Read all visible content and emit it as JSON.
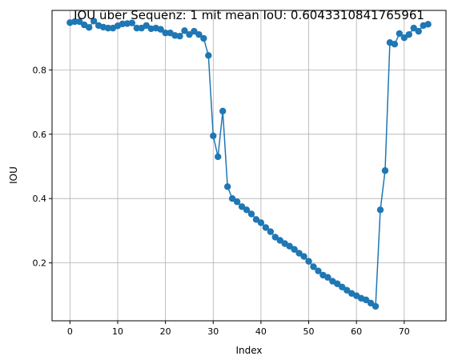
{
  "chart_data": {
    "type": "line",
    "title": "IOU über Sequenz: 1 mit mean IoU: 0.6043310841765961",
    "xlabel": "Index",
    "ylabel": "IOU",
    "xlim": [
      -3.75,
      78.75
    ],
    "ylim": [
      0.02,
      0.985
    ],
    "xticks": [
      0,
      10,
      20,
      30,
      40,
      50,
      60,
      70
    ],
    "yticks": [
      0.2,
      0.4,
      0.6,
      0.8
    ],
    "grid": true,
    "marker": "circle",
    "color": "#1f77b4",
    "series": [
      {
        "name": "",
        "x": [
          0,
          1,
          2,
          3,
          4,
          5,
          6,
          7,
          8,
          9,
          10,
          11,
          12,
          13,
          14,
          15,
          16,
          17,
          18,
          19,
          20,
          21,
          22,
          23,
          24,
          25,
          26,
          27,
          28,
          29,
          30,
          31,
          32,
          33,
          34,
          35,
          36,
          37,
          38,
          39,
          40,
          41,
          42,
          43,
          44,
          45,
          46,
          47,
          48,
          49,
          50,
          51,
          52,
          53,
          54,
          55,
          56,
          57,
          58,
          59,
          60,
          61,
          62,
          63,
          64,
          65,
          66,
          67,
          68,
          69,
          70,
          71,
          72,
          73,
          74,
          75
        ],
        "values": [
          0.947,
          0.95,
          0.95,
          0.94,
          0.932,
          0.952,
          0.938,
          0.933,
          0.93,
          0.93,
          0.937,
          0.943,
          0.944,
          0.946,
          0.93,
          0.93,
          0.938,
          0.928,
          0.93,
          0.926,
          0.915,
          0.915,
          0.907,
          0.905,
          0.922,
          0.91,
          0.92,
          0.91,
          0.898,
          0.845,
          0.595,
          0.53,
          0.672,
          0.437,
          0.4,
          0.39,
          0.375,
          0.365,
          0.352,
          0.335,
          0.325,
          0.31,
          0.297,
          0.28,
          0.27,
          0.26,
          0.252,
          0.242,
          0.23,
          0.22,
          0.205,
          0.188,
          0.175,
          0.162,
          0.155,
          0.143,
          0.135,
          0.125,
          0.115,
          0.105,
          0.098,
          0.09,
          0.085,
          0.075,
          0.065,
          0.365,
          0.487,
          0.885,
          0.88,
          0.913,
          0.9,
          0.91,
          0.93,
          0.92,
          0.938,
          0.942
        ]
      }
    ]
  }
}
